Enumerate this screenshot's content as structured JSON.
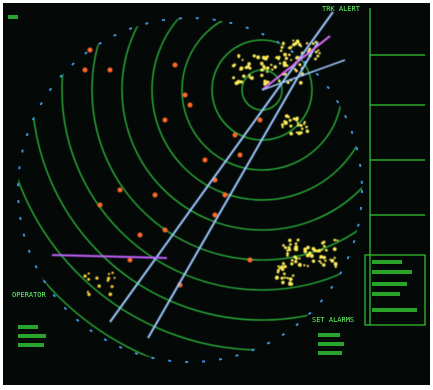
{
  "screen": {
    "top_right_label": "TRK ALERT",
    "left_label": "OPERATOR",
    "bottom_right_label": "SET ALARMS"
  }
}
